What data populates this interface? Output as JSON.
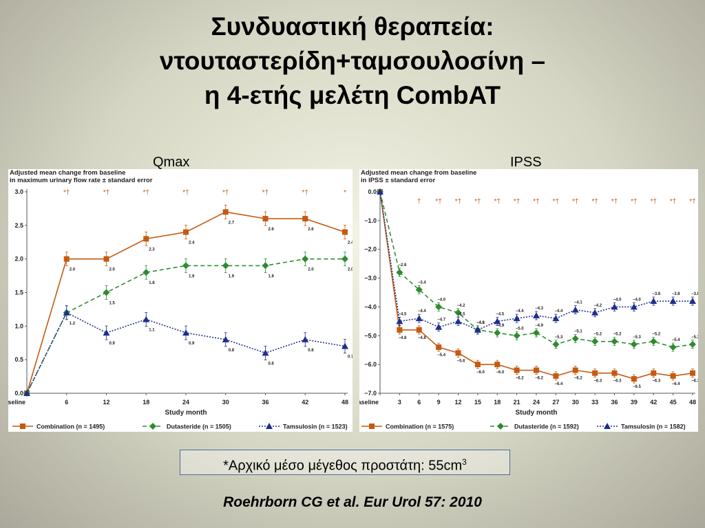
{
  "slide": {
    "title_lines": [
      "Συνδυαστική θεραπεία:",
      "ντουταστερίδη+ταμσουλοσίνη –",
      "η 4-ετής μελέτη CombAT"
    ],
    "footnote_text": "*Αρχικό μέσο μέγεθος προστάτη: 55cm",
    "footnote_sup": "3",
    "citation": "Roehrborn CG et al. Eur Urol 57: 2010"
  },
  "colors": {
    "combination": "#c55a11",
    "dutasteride": "#2e8b30",
    "tamsulosin": "#1f2e8c"
  },
  "chart_data": [
    {
      "type": "line",
      "panel_label": "Qmax",
      "ylabel_lines": [
        "Adjusted mean change from baseline",
        "in maximum urinary flow rate ± standard error"
      ],
      "xlabel": "Study month",
      "x": [
        "Baseline",
        "6",
        "12",
        "18",
        "24",
        "30",
        "36",
        "42",
        "48"
      ],
      "ylim": [
        0.0,
        3.0
      ],
      "yticks": [
        "0.0",
        "0.5",
        "1.0",
        "1.5",
        "2.0",
        "2.5",
        "3.0"
      ],
      "significance_marks": [
        "",
        "*†",
        "*†",
        "*†",
        "*†",
        "*†",
        "*†",
        "*†",
        "*"
      ],
      "series": [
        {
          "name": "Combination (n = 1495)",
          "key": "combination",
          "values": [
            0,
            2.0,
            2.0,
            2.3,
            2.4,
            2.7,
            2.6,
            2.6,
            2.4
          ],
          "labels": [
            "",
            "2.0",
            "2.0",
            "2.3",
            "2.4",
            "2.7",
            "2.6",
            "2.6",
            "2.4"
          ]
        },
        {
          "name": "Dutasteride (n = 1505)",
          "key": "dutasteride",
          "values": [
            0,
            1.2,
            1.5,
            1.8,
            1.9,
            1.9,
            1.9,
            2.0,
            2.0
          ],
          "labels": [
            "",
            "1.2",
            "1.5",
            "1.8",
            "1.9",
            "1.9",
            "1.9",
            "2.0",
            "2.0"
          ]
        },
        {
          "name": "Tamsulosin (n = 1523)",
          "key": "tamsulosin",
          "values": [
            0,
            1.2,
            0.9,
            1.1,
            0.9,
            0.8,
            0.6,
            0.8,
            0.7
          ],
          "labels": [
            "",
            "",
            "0.9",
            "1.1",
            "0.9",
            "0.8",
            "0.6",
            "0.8",
            "0.7"
          ]
        }
      ],
      "legend": "bottom"
    },
    {
      "type": "line",
      "panel_label": "IPSS",
      "ylabel_lines": [
        "Adjusted mean change from baseline",
        "in IPSS ± standard error"
      ],
      "xlabel": "Study month",
      "x": [
        "Baseline",
        "3",
        "6",
        "9",
        "12",
        "15",
        "18",
        "21",
        "24",
        "27",
        "30",
        "33",
        "36",
        "39",
        "42",
        "45",
        "48"
      ],
      "ylim": [
        -7.0,
        0.0
      ],
      "yticks": [
        "0.0",
        "−1.0",
        "−2.0",
        "−3.0",
        "−4.0",
        "−5.0",
        "−6.0",
        "−7.0"
      ],
      "significance_marks": [
        "",
        "",
        "†",
        "*†",
        "*†",
        "*†",
        "*†",
        "*†",
        "*†",
        "*†",
        "*†",
        "*†",
        "*†",
        "*†",
        "*†",
        "*†",
        "*†"
      ],
      "series": [
        {
          "name": "Combination (n = 1575)",
          "key": "combination",
          "values": [
            0,
            -4.8,
            -4.8,
            -5.4,
            -5.6,
            -6.0,
            -6.0,
            -6.2,
            -6.2,
            -6.4,
            -6.2,
            -6.3,
            -6.3,
            -6.5,
            -6.3,
            -6.4,
            -6.3
          ],
          "labels": [
            "",
            "−4.8",
            "−4.8",
            "−5.4",
            "−5.6",
            "−6.0",
            "−6.0",
            "−6.2",
            "−6.2",
            "−6.4",
            "−6.2",
            "−6.3",
            "−6.3",
            "−6.5",
            "−6.3",
            "−6.4",
            "−6.3"
          ]
        },
        {
          "name": "Dutasteride (n = 1592)",
          "key": "dutasteride",
          "values": [
            0,
            -2.8,
            -3.4,
            -4.0,
            -4.2,
            -4.8,
            -4.9,
            -5.0,
            -4.9,
            -5.3,
            -5.1,
            -5.2,
            -5.2,
            -5.3,
            -5.2,
            -5.4,
            -5.3
          ],
          "labels": [
            "",
            "−2.8",
            "−3.4",
            "−4.0",
            "−4.2",
            "−4.8",
            "−4.9",
            "−5.0",
            "−4.9",
            "−5.3",
            "−5.1",
            "−5.2",
            "−5.2",
            "−5.3",
            "−5.2",
            "−5.4",
            "−5.3"
          ]
        },
        {
          "name": "Tamsulosin (n = 1582)",
          "key": "tamsulosin",
          "values": [
            0,
            -4.5,
            -4.4,
            -4.7,
            -4.5,
            -4.8,
            -4.5,
            -4.4,
            -4.3,
            -4.4,
            -4.1,
            -4.2,
            -4.0,
            -4.0,
            -3.8,
            -3.8,
            -3.8
          ],
          "labels": [
            "",
            "−4.5",
            "−4.4",
            "−4.7",
            "−4.5",
            "−4.8",
            "−4.5",
            "−4.4",
            "−4.3",
            "−4.4",
            "−4.1",
            "−4.2",
            "−4.0",
            "−4.0",
            "−3.8",
            "−3.8",
            "−3.8"
          ]
        }
      ],
      "legend": "bottom"
    }
  ]
}
